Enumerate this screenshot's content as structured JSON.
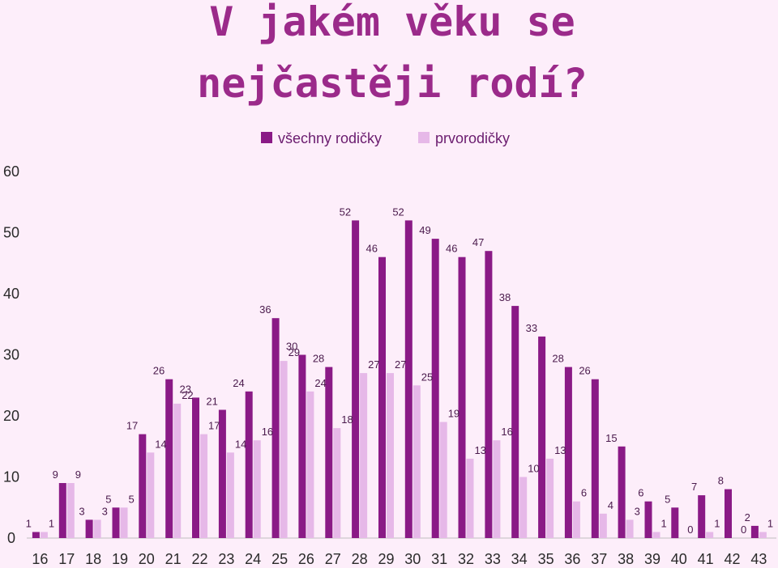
{
  "chart_data": {
    "type": "bar",
    "title_lines": [
      "V jakém věku se",
      "nejčastěji rodí?"
    ],
    "categories": [
      "16",
      "17",
      "18",
      "19",
      "20",
      "21",
      "22",
      "23",
      "24",
      "25",
      "26",
      "27",
      "28",
      "29",
      "30",
      "31",
      "32",
      "33",
      "34",
      "35",
      "36",
      "37",
      "38",
      "39",
      "40",
      "41",
      "42",
      "43"
    ],
    "series": [
      {
        "name": "všechny rodičky",
        "color": "#8a1a86",
        "values": [
          1,
          9,
          3,
          5,
          17,
          26,
          23,
          21,
          24,
          36,
          30,
          28,
          52,
          46,
          52,
          49,
          46,
          47,
          38,
          33,
          28,
          26,
          15,
          6,
          5,
          7,
          8,
          2
        ]
      },
      {
        "name": "prvorodičky",
        "color": "#e6b8e8",
        "values": [
          1,
          9,
          3,
          5,
          14,
          22,
          17,
          14,
          16,
          29,
          24,
          18,
          27,
          27,
          25,
          19,
          13,
          16,
          10,
          13,
          6,
          4,
          3,
          1,
          0,
          1,
          0,
          1
        ]
      }
    ],
    "ylim": [
      0,
      60
    ],
    "yticks": [
      0,
      10,
      20,
      30,
      40,
      50,
      60
    ],
    "legend_position": "top-center",
    "grid": false,
    "data_labels": true
  }
}
